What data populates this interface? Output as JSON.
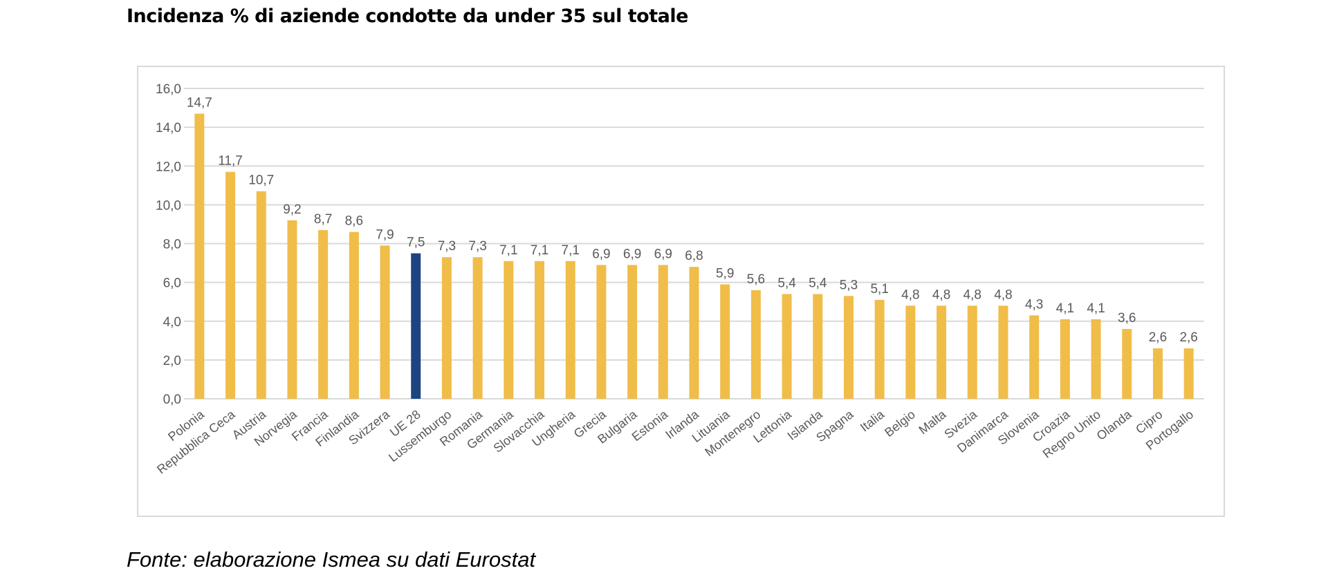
{
  "title": "Incidenza % di aziende condotte da under 35 sul totale",
  "source": "Fonte: elaborazione Ismea su dati Eurostat",
  "colors": {
    "bar": "#f0bd48",
    "highlight": "#1d4480",
    "grid": "#d9d9d9",
    "text": "#595959"
  },
  "chart_data": {
    "type": "bar",
    "categories": [
      "Polonia",
      "Repubblica Ceca",
      "Austria",
      "Norvegia",
      "Francia",
      "Finlandia",
      "Svizzera",
      "UE 28",
      "Lussemburgo",
      "Romania",
      "Germania",
      "Slovacchia",
      "Ungheria",
      "Grecia",
      "Bulgaria",
      "Estonia",
      "Irlanda",
      "Lituania",
      "Montenegro",
      "Lettonia",
      "Islanda",
      "Spagna",
      "Italia",
      "Belgio",
      "Malta",
      "Svezia",
      "Danimarca",
      "Slovenia",
      "Croazia",
      "Regno Unito",
      "Olanda",
      "Cipro",
      "Portogallo"
    ],
    "values": [
      14.7,
      11.7,
      10.7,
      9.2,
      8.7,
      8.6,
      7.9,
      7.5,
      7.3,
      7.3,
      7.1,
      7.1,
      7.1,
      6.9,
      6.9,
      6.9,
      6.8,
      5.9,
      5.6,
      5.4,
      5.4,
      5.3,
      5.1,
      4.8,
      4.8,
      4.8,
      4.8,
      4.3,
      4.1,
      4.1,
      3.6,
      2.6,
      2.6
    ],
    "value_labels": [
      "14,7",
      "11,7",
      "10,7",
      "9,2",
      "8,7",
      "8,6",
      "7,9",
      "7,5",
      "7,3",
      "7,3",
      "7,1",
      "7,1",
      "7,1",
      "6,9",
      "6,9",
      "6,9",
      "6,8",
      "5,9",
      "5,6",
      "5,4",
      "5,4",
      "5,3",
      "5,1",
      "4,8",
      "4,8",
      "4,8",
      "4,8",
      "4,3",
      "4,1",
      "4,1",
      "3,6",
      "2,6",
      "2,6"
    ],
    "highlight_category": "UE 28",
    "ylim": [
      0,
      16
    ],
    "yticks": [
      0,
      2,
      4,
      6,
      8,
      10,
      12,
      14,
      16
    ],
    "ytick_labels": [
      "0,0",
      "2,0",
      "4,0",
      "6,0",
      "8,0",
      "10,0",
      "12,0",
      "14,0",
      "16,0"
    ],
    "xlabel": "",
    "ylabel": "",
    "grid": true,
    "legend": "none"
  }
}
